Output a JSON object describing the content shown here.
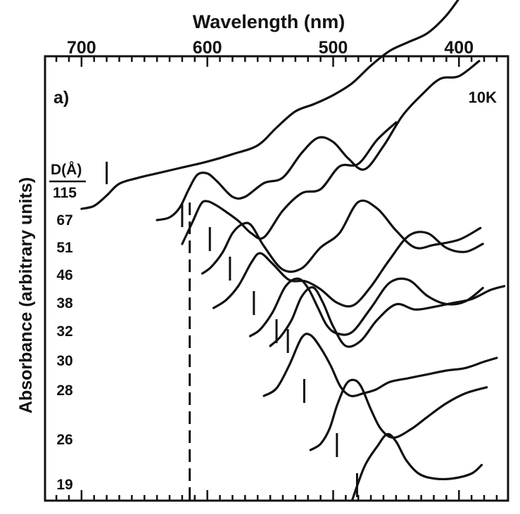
{
  "chart_data": {
    "type": "line",
    "title": "",
    "panel_label": "a)",
    "temperature_label": "10K",
    "xlabel": "Wavelength (nm)",
    "ylabel": "Absorbance (arbitrary units)",
    "x_axis_position": "top",
    "x_ticks": [
      700,
      600,
      500,
      400
    ],
    "x_range": [
      729,
      361
    ],
    "y_ticks": "none",
    "grid": false,
    "legend_header": "D(Å)",
    "dashed_reference_wavelength": 614,
    "series": [
      {
        "name": "115",
        "marker_wavelength": 680,
        "x": [
          700,
          690,
          680,
          670,
          655,
          640,
          620,
          600,
          580,
          560,
          545,
          530,
          515,
          500,
          485,
          470,
          455,
          440,
          425,
          410,
          397
        ],
        "y": [
          0.0,
          0.02,
          0.09,
          0.17,
          0.21,
          0.24,
          0.28,
          0.32,
          0.37,
          0.43,
          0.55,
          0.66,
          0.71,
          0.77,
          0.85,
          0.97,
          1.07,
          1.13,
          1.19,
          1.31,
          1.46
        ]
      },
      {
        "name": "67",
        "marker_wavelength": 620,
        "x": [
          640,
          630,
          622,
          615,
          608,
          600,
          592,
          580,
          570,
          555,
          540,
          525,
          512,
          500,
          488,
          475,
          460,
          445,
          430,
          415,
          400,
          384
        ],
        "y": [
          0.0,
          0.02,
          0.09,
          0.22,
          0.33,
          0.34,
          0.28,
          0.17,
          0.17,
          0.27,
          0.31,
          0.49,
          0.6,
          0.57,
          0.45,
          0.37,
          0.54,
          0.76,
          0.91,
          1.03,
          1.05,
          1.16
        ]
      },
      {
        "name": "51",
        "marker_wavelength": 598,
        "x": [
          620,
          612,
          605,
          600,
          593,
          585,
          575,
          565,
          555,
          540,
          525,
          510,
          495,
          480,
          465,
          450
        ],
        "y": [
          0.0,
          0.16,
          0.3,
          0.32,
          0.29,
          0.24,
          0.17,
          0.08,
          0.05,
          0.25,
          0.38,
          0.41,
          0.58,
          0.6,
          0.78,
          0.91
        ]
      },
      {
        "name": "46",
        "marker_wavelength": 582,
        "x": [
          604,
          597,
          588,
          580,
          572,
          565,
          555,
          540,
          525,
          510,
          495,
          480,
          465,
          450,
          435,
          420,
          400,
          383
        ],
        "y": [
          0.0,
          0.05,
          0.16,
          0.31,
          0.38,
          0.37,
          0.21,
          0.03,
          0.04,
          0.2,
          0.31,
          0.55,
          0.5,
          0.33,
          0.2,
          0.22,
          0.26,
          0.35
        ]
      },
      {
        "name": "38",
        "marker_wavelength": 563,
        "x": [
          595,
          585,
          575,
          565,
          558,
          548,
          535,
          522,
          510,
          497,
          484,
          470,
          456,
          440,
          425,
          410,
          395,
          381
        ],
        "y": [
          0.0,
          0.06,
          0.17,
          0.34,
          0.41,
          0.33,
          0.21,
          0.2,
          0.14,
          0.04,
          0.02,
          0.16,
          0.35,
          0.54,
          0.56,
          0.45,
          0.42,
          0.48
        ]
      },
      {
        "name": "32",
        "marker_wavelength": 545,
        "x": [
          566,
          558,
          548,
          538,
          528,
          520,
          512,
          505,
          497,
          485,
          470,
          455,
          440,
          425,
          410,
          395,
          381
        ],
        "y": [
          0.0,
          0.05,
          0.18,
          0.37,
          0.43,
          0.36,
          0.21,
          0.08,
          0.02,
          0.03,
          0.21,
          0.4,
          0.42,
          0.3,
          0.24,
          0.26,
          0.36
        ]
      },
      {
        "name": "30",
        "marker_wavelength": 536,
        "x": [
          550,
          542,
          533,
          525,
          516,
          508,
          500,
          490,
          478,
          465,
          450,
          435,
          420,
          405,
          390,
          375,
          364
        ],
        "y": [
          0.0,
          0.07,
          0.2,
          0.38,
          0.45,
          0.33,
          0.15,
          0.0,
          0.04,
          0.2,
          0.32,
          0.28,
          0.3,
          0.33,
          0.36,
          0.43,
          0.46
        ]
      },
      {
        "name": "28",
        "marker_wavelength": 523,
        "x": [
          555,
          545,
          535,
          525,
          518,
          510,
          502,
          494,
          486,
          476,
          466,
          455,
          440,
          425,
          410,
          395,
          380,
          370
        ],
        "y": [
          0.0,
          0.06,
          0.24,
          0.46,
          0.48,
          0.38,
          0.24,
          0.07,
          0.0,
          0.02,
          0.05,
          0.11,
          0.14,
          0.17,
          0.2,
          0.22,
          0.27,
          0.3
        ]
      },
      {
        "name": "26",
        "marker_wavelength": 497,
        "x": [
          518,
          510,
          503,
          497,
          490,
          484,
          478,
          470,
          462,
          452,
          438,
          425,
          410,
          395,
          378
        ],
        "y": [
          0.0,
          0.05,
          0.17,
          0.36,
          0.53,
          0.57,
          0.52,
          0.33,
          0.17,
          0.1,
          0.17,
          0.27,
          0.38,
          0.46,
          0.51
        ]
      },
      {
        "name": "19",
        "marker_wavelength": 481,
        "x": [
          485,
          475,
          465,
          457,
          450,
          442,
          432,
          420,
          405,
          390,
          382
        ],
        "y": [
          0.0,
          0.28,
          0.44,
          0.54,
          0.48,
          0.33,
          0.22,
          0.18,
          0.18,
          0.22,
          0.29
        ]
      }
    ]
  }
}
